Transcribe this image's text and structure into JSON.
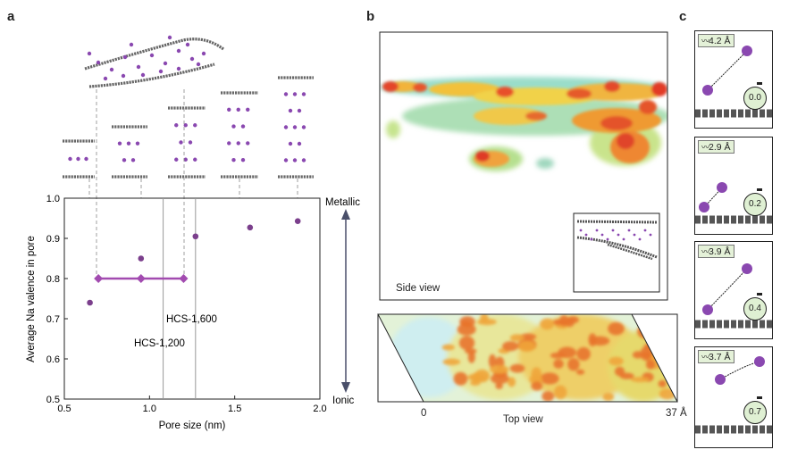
{
  "panel_labels": {
    "a": "a",
    "b": "b",
    "c": "c"
  },
  "chart_data": {
    "type": "scatter",
    "xlabel": "Pore size (nm)",
    "ylabel": "Average Na valence in pore",
    "xlim": [
      0.5,
      2.0
    ],
    "ylim": [
      0.5,
      1.0
    ],
    "x_ticks": [
      "0.5",
      "1.0",
      "1.5",
      "2.0"
    ],
    "y_ticks": [
      "0.5",
      "0.6",
      "0.7",
      "0.8",
      "0.9",
      "1.0"
    ],
    "points": [
      {
        "x": 0.65,
        "y": 0.74
      },
      {
        "x": 0.95,
        "y": 0.85
      },
      {
        "x": 1.27,
        "y": 0.905
      },
      {
        "x": 1.59,
        "y": 0.927
      },
      {
        "x": 1.87,
        "y": 0.943
      }
    ],
    "range_bar": {
      "x": [
        0.7,
        0.95,
        1.2
      ],
      "y": 0.8
    },
    "vlines": [
      {
        "x": 1.08,
        "label": "HCS-1,200"
      },
      {
        "x": 1.27,
        "label": "HCS-1,600"
      }
    ],
    "right_axis": {
      "top": "Metallic",
      "bottom": "Ionic"
    },
    "colors": {
      "points": "#7b3f8c",
      "range": "#a24bb0",
      "arrow": "#4a4f6a"
    }
  },
  "panel_b": {
    "side_label": "Side view",
    "top_label": "Top view",
    "axis_start": "0",
    "axis_end": "37 Å"
  },
  "panel_c": {
    "cards": [
      {
        "distance": "4.2 Å",
        "valence": "0.0"
      },
      {
        "distance": "2.9 Å",
        "valence": "0.2"
      },
      {
        "distance": "3.9 Å",
        "valence": "0.4"
      },
      {
        "distance": "3.7 Å",
        "valence": "0.7"
      }
    ],
    "colors": {
      "na": "#8a48b0",
      "carbon": "#555555",
      "gauge": "#dff0d3"
    }
  }
}
